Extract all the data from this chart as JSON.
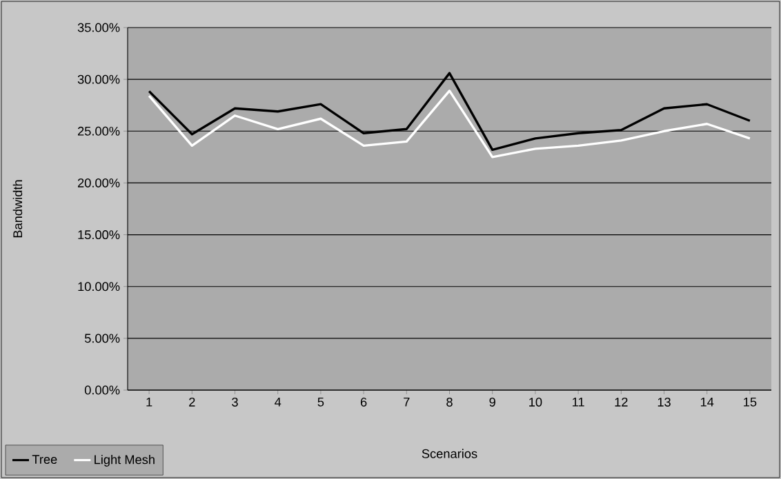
{
  "chart_data": {
    "type": "line",
    "xlabel": "Scenarios",
    "ylabel": "Bandwidth",
    "categories": [
      "1",
      "2",
      "3",
      "4",
      "5",
      "6",
      "7",
      "8",
      "9",
      "10",
      "11",
      "12",
      "13",
      "14",
      "15"
    ],
    "series": [
      {
        "name": "Tree",
        "color": "#000000",
        "values": [
          28.85,
          24.7,
          27.2,
          26.9,
          27.6,
          24.8,
          25.2,
          30.6,
          23.2,
          24.3,
          24.8,
          25.1,
          27.2,
          27.6,
          26.0
        ]
      },
      {
        "name": "Light Mesh",
        "color": "#ffffff",
        "values": [
          28.4,
          23.6,
          26.5,
          25.2,
          26.2,
          23.6,
          24.0,
          28.9,
          22.5,
          23.3,
          23.6,
          24.1,
          25.0,
          25.7,
          24.3
        ]
      }
    ],
    "ylim": [
      0,
      35
    ],
    "yticks": [
      {
        "value": 0,
        "label": "0.00%"
      },
      {
        "value": 5,
        "label": "5.00%"
      },
      {
        "value": 10,
        "label": "10.00%"
      },
      {
        "value": 15,
        "label": "15.00%"
      },
      {
        "value": 20,
        "label": "20.00%"
      },
      {
        "value": 25,
        "label": "25.00%"
      },
      {
        "value": 30,
        "label": "30.00%"
      },
      {
        "value": 35,
        "label": "35.00%"
      }
    ],
    "grid": "y",
    "legend": "bottom left",
    "marker": "none",
    "line_style": "solid"
  }
}
